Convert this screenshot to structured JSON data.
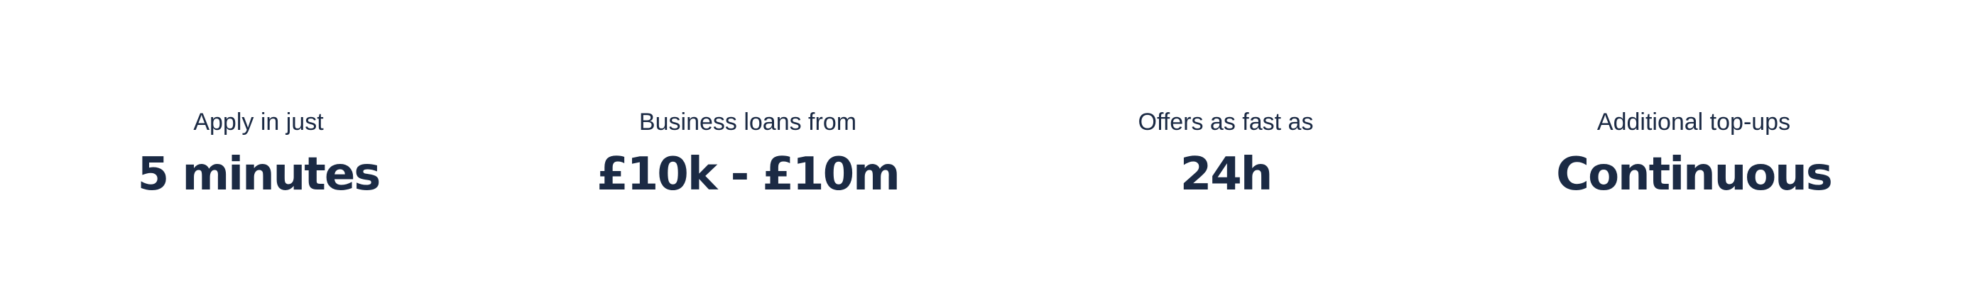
{
  "stats": [
    {
      "label": "Apply in just",
      "value": "5 minutes"
    },
    {
      "label": "Business loans from",
      "value": "£10k - £10m"
    },
    {
      "label": "Offers as fast as",
      "value": "24h"
    },
    {
      "label": "Additional top-ups",
      "value": "Continuous"
    }
  ],
  "colors": {
    "text": "#1b2a44",
    "background": "#ffffff"
  }
}
